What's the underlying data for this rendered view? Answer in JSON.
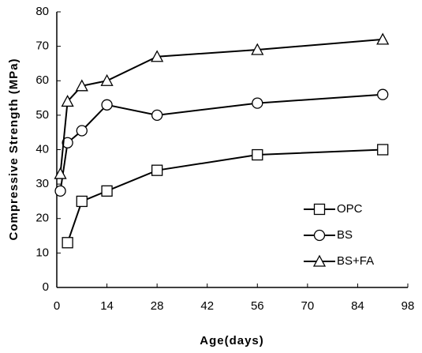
{
  "chart_data": {
    "type": "line",
    "x_label": "Age(days)",
    "y_label": "Compressive Strength (MPa)",
    "xlim": [
      0,
      98
    ],
    "xticks": [
      0,
      14,
      28,
      42,
      56,
      70,
      84,
      98
    ],
    "ylim": [
      0,
      80
    ],
    "yticks": [
      0,
      10,
      20,
      30,
      40,
      50,
      60,
      70,
      80
    ],
    "grid": false,
    "legend": "lower-right",
    "series": [
      {
        "name": "OPC",
        "color": "#000000",
        "marker": "square",
        "x": [
          3,
          7,
          14,
          28,
          56,
          91
        ],
        "values": [
          13,
          25,
          28,
          34,
          38.5,
          40
        ]
      },
      {
        "name": "BS",
        "color": "#000000",
        "marker": "circle",
        "x": [
          1,
          3,
          7,
          14,
          28,
          56,
          91
        ],
        "values": [
          28,
          42,
          45.5,
          53,
          50,
          53.5,
          56
        ]
      },
      {
        "name": "BS+FA",
        "color": "#000000",
        "marker": "triangle",
        "x": [
          1,
          3,
          7,
          14,
          28,
          56,
          91
        ],
        "values": [
          33,
          54,
          58.5,
          60,
          67,
          69,
          72
        ]
      }
    ]
  }
}
